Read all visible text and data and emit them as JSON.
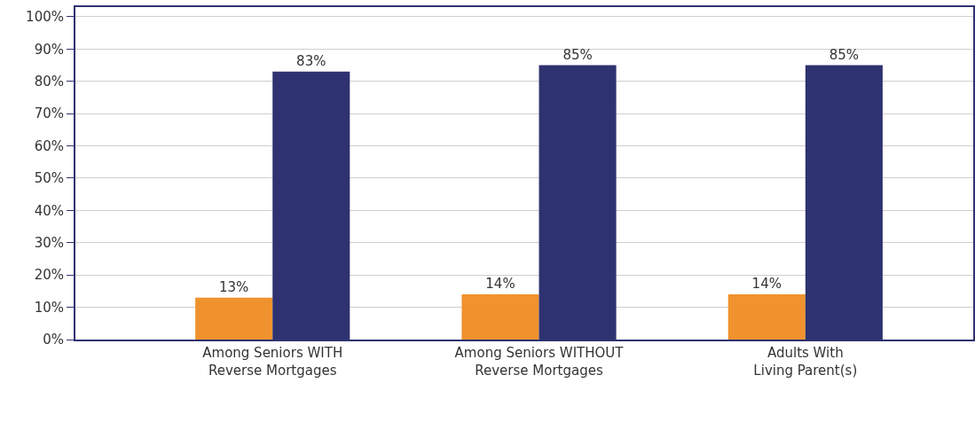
{
  "chart_data": {
    "type": "bar",
    "categories": [
      "Among Seniors WITH\nReverse Mortgages",
      "Among Seniors WITHOUT\nReverse Mortgages",
      "Adults With\nLiving Parent(s)"
    ],
    "series": [
      {
        "color": "#f0922e",
        "values": [
          13,
          14,
          14
        ],
        "value_labels": [
          "13%",
          "14%",
          "14%"
        ]
      },
      {
        "color": "#2e3270",
        "values": [
          83,
          85,
          85
        ],
        "value_labels": [
          "83%",
          "85%",
          "85%"
        ]
      }
    ],
    "ylim": [
      0,
      103
    ],
    "yticks": [
      {
        "value": 0,
        "label": "0%"
      },
      {
        "value": 10,
        "label": "10%"
      },
      {
        "value": 20,
        "label": "20%"
      },
      {
        "value": 30,
        "label": "30%"
      },
      {
        "value": 40,
        "label": "40%"
      },
      {
        "value": 50,
        "label": "50%"
      },
      {
        "value": 60,
        "label": "60%"
      },
      {
        "value": 70,
        "label": "70%"
      },
      {
        "value": 80,
        "label": "80%"
      },
      {
        "value": 90,
        "label": "90%"
      },
      {
        "value": 100,
        "label": "100%"
      }
    ],
    "grid": true
  }
}
